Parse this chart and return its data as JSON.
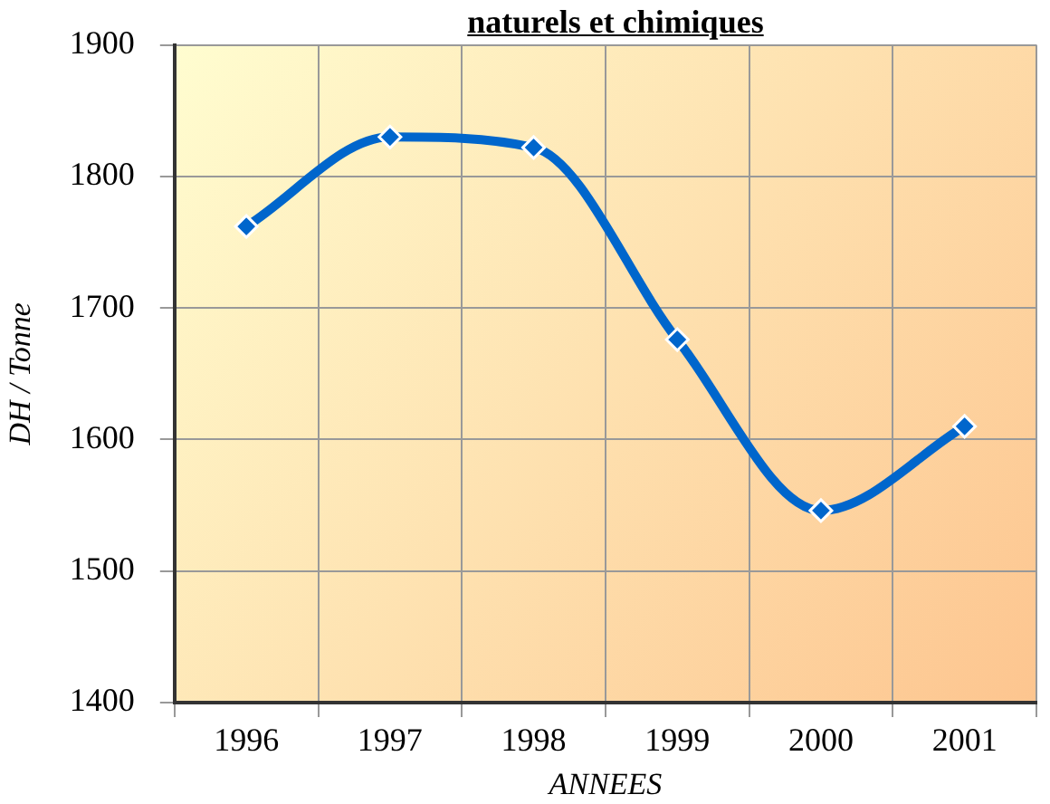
{
  "chart_data": {
    "type": "line",
    "title": "naturels et chimiques",
    "xlabel": "ANNEES",
    "ylabel": "DH / Tonne",
    "categories": [
      "1996",
      "1997",
      "1998",
      "1999",
      "2000",
      "2001"
    ],
    "series": [
      {
        "color": "#0066cc",
        "values": [
          1762,
          1830,
          1822,
          1676,
          1546,
          1610
        ]
      }
    ],
    "ylim": [
      1400,
      1900
    ],
    "yticks": [
      1400,
      1500,
      1600,
      1700,
      1800,
      1900
    ],
    "grid": true,
    "legend": false,
    "marker": "diamond",
    "line_style": "solid"
  }
}
